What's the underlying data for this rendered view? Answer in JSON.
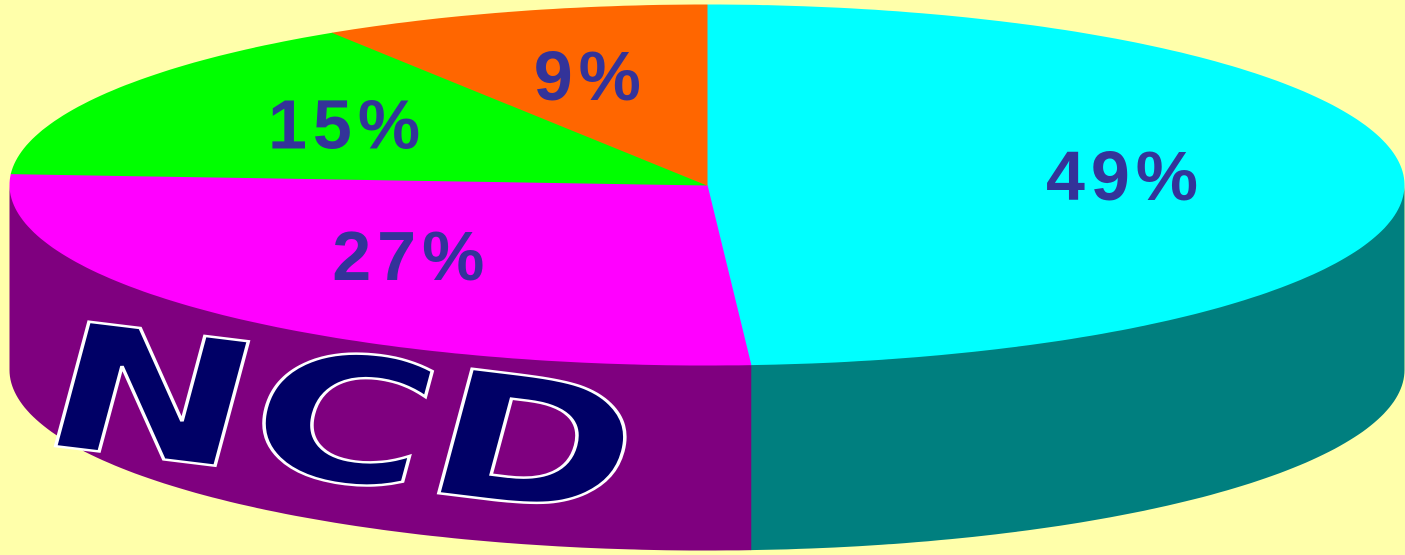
{
  "chart_data": {
    "type": "pie",
    "values": [
      49,
      27,
      15,
      9
    ],
    "value_labels": [
      "49%",
      "27%",
      "15%",
      "9%"
    ],
    "colors": [
      "#00ffff",
      "#ff00ff",
      "#00ff00",
      "#ff6600"
    ],
    "annotation": "NCD"
  }
}
